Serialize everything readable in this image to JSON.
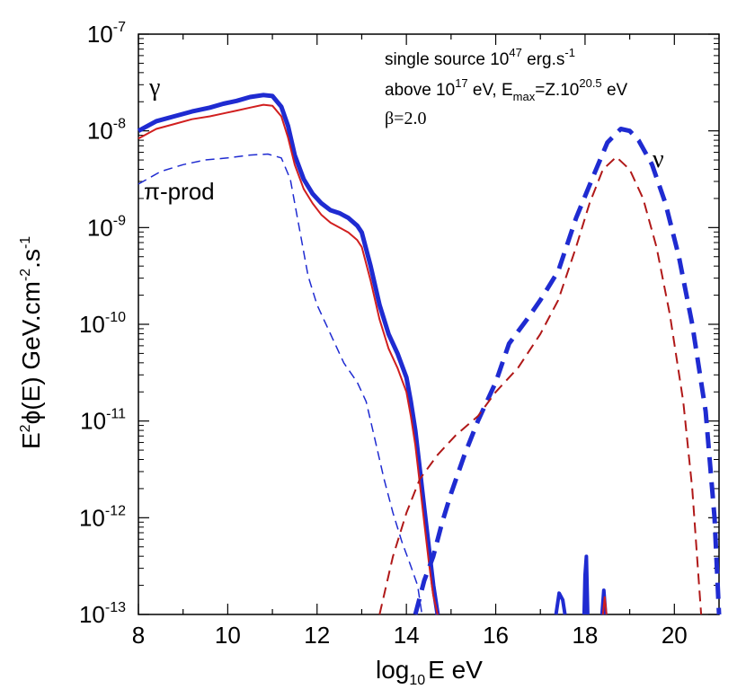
{
  "chart_data": {
    "type": "line",
    "ylabel": {
      "main": "E",
      "exp": "2",
      "rest": "ϕ(E) GeV.cm",
      "exp2": "-2",
      "rest2": ".s",
      "exp3": "-1"
    },
    "xlabel": {
      "main": "log",
      "sub": "10",
      "rest": "E eV"
    },
    "xlim": [
      8,
      21
    ],
    "ylim_log10": [
      -13,
      -7
    ],
    "y_scale": "log",
    "x_ticks": [
      8,
      10,
      12,
      14,
      16,
      18,
      20
    ],
    "x_tick_labels": [
      "8",
      "10",
      "12",
      "14",
      "16",
      "18",
      "20"
    ],
    "y_ticks_exp": [
      -7,
      -8,
      -9,
      -10,
      -11,
      -12,
      -13
    ],
    "y_tick_labels": [
      {
        "base": "10",
        "exp": "-7"
      },
      {
        "base": "10",
        "exp": "-8"
      },
      {
        "base": "10",
        "exp": "-9"
      },
      {
        "base": "10",
        "exp": "-10"
      },
      {
        "base": "10",
        "exp": "-11"
      },
      {
        "base": "10",
        "exp": "-12"
      },
      {
        "base": "10",
        "exp": "-13"
      }
    ],
    "annotations": {
      "line1": {
        "text": "single source 10",
        "exp": "47",
        "rest": " erg.s",
        "exp2": "-1"
      },
      "line2": {
        "text": "above 10",
        "exp": "17",
        "rest": " eV, E",
        "sub": "max",
        "rest2": "=Z.10",
        "exp2": "20.5",
        "rest3": " eV"
      },
      "line3": "β=2.0"
    },
    "curve_labels": {
      "gamma": "γ",
      "pi_prod": "π-prod",
      "nu": "ν"
    },
    "series": [
      {
        "name": "photons (blue, thick solid)",
        "color": "#1f2bd1",
        "dash": "none",
        "width": 5,
        "points": [
          [
            8.0,
            -8.0
          ],
          [
            8.4,
            -7.9
          ],
          [
            8.8,
            -7.85
          ],
          [
            9.2,
            -7.8
          ],
          [
            9.6,
            -7.76
          ],
          [
            9.9,
            -7.72
          ],
          [
            10.2,
            -7.69
          ],
          [
            10.5,
            -7.65
          ],
          [
            10.8,
            -7.63
          ],
          [
            11.0,
            -7.64
          ],
          [
            11.2,
            -7.75
          ],
          [
            11.35,
            -7.95
          ],
          [
            11.5,
            -8.25
          ],
          [
            11.7,
            -8.5
          ],
          [
            11.9,
            -8.65
          ],
          [
            12.1,
            -8.75
          ],
          [
            12.3,
            -8.82
          ],
          [
            12.5,
            -8.85
          ],
          [
            12.7,
            -8.9
          ],
          [
            12.9,
            -8.98
          ],
          [
            13.0,
            -9.05
          ],
          [
            13.2,
            -9.4
          ],
          [
            13.4,
            -9.8
          ],
          [
            13.6,
            -10.1
          ],
          [
            13.8,
            -10.3
          ],
          [
            14.0,
            -10.55
          ],
          [
            14.1,
            -10.8
          ],
          [
            14.2,
            -11.1
          ],
          [
            14.3,
            -11.5
          ],
          [
            14.4,
            -11.9
          ],
          [
            14.5,
            -12.3
          ],
          [
            14.6,
            -12.7
          ],
          [
            14.7,
            -13.0
          ]
        ]
      },
      {
        "name": "photons (red, thin solid)",
        "color": "#d11f1f",
        "dash": "none",
        "width": 2,
        "points": [
          [
            8.0,
            -8.08
          ],
          [
            8.4,
            -7.98
          ],
          [
            8.8,
            -7.93
          ],
          [
            9.2,
            -7.88
          ],
          [
            9.6,
            -7.85
          ],
          [
            9.9,
            -7.82
          ],
          [
            10.2,
            -7.79
          ],
          [
            10.5,
            -7.76
          ],
          [
            10.8,
            -7.73
          ],
          [
            11.0,
            -7.74
          ],
          [
            11.2,
            -7.85
          ],
          [
            11.35,
            -8.07
          ],
          [
            11.5,
            -8.35
          ],
          [
            11.7,
            -8.6
          ],
          [
            11.9,
            -8.75
          ],
          [
            12.1,
            -8.87
          ],
          [
            12.3,
            -8.95
          ],
          [
            12.5,
            -9.0
          ],
          [
            12.7,
            -9.05
          ],
          [
            12.9,
            -9.13
          ],
          [
            13.0,
            -9.2
          ],
          [
            13.2,
            -9.55
          ],
          [
            13.4,
            -9.95
          ],
          [
            13.6,
            -10.25
          ],
          [
            13.8,
            -10.45
          ],
          [
            14.0,
            -10.7
          ],
          [
            14.1,
            -10.95
          ],
          [
            14.2,
            -11.25
          ],
          [
            14.3,
            -11.65
          ],
          [
            14.4,
            -12.05
          ],
          [
            14.5,
            -12.45
          ],
          [
            14.6,
            -12.8
          ],
          [
            14.7,
            -13.0
          ]
        ]
      },
      {
        "name": "pi-prod (blue, thin dashed)",
        "color": "#1f2bd1",
        "dash": "10,6",
        "width": 1.5,
        "points": [
          [
            8.0,
            -8.55
          ],
          [
            8.5,
            -8.42
          ],
          [
            9.0,
            -8.35
          ],
          [
            9.5,
            -8.3
          ],
          [
            10.0,
            -8.28
          ],
          [
            10.5,
            -8.25
          ],
          [
            10.9,
            -8.24
          ],
          [
            11.2,
            -8.28
          ],
          [
            11.4,
            -8.5
          ],
          [
            11.6,
            -9.0
          ],
          [
            11.8,
            -9.5
          ],
          [
            12.0,
            -9.8
          ],
          [
            12.3,
            -10.1
          ],
          [
            12.6,
            -10.4
          ],
          [
            12.9,
            -10.6
          ],
          [
            13.1,
            -10.8
          ],
          [
            13.3,
            -11.2
          ],
          [
            13.5,
            -11.6
          ],
          [
            13.7,
            -11.95
          ],
          [
            13.9,
            -12.25
          ],
          [
            14.1,
            -12.5
          ],
          [
            14.25,
            -12.7
          ],
          [
            14.35,
            -13.0
          ]
        ]
      },
      {
        "name": "neutrinos (blue, thick dashed)",
        "color": "#1f2bd1",
        "dash": "18,10",
        "width": 5,
        "points": [
          [
            14.2,
            -13.0
          ],
          [
            14.4,
            -12.65
          ],
          [
            14.6,
            -12.4
          ],
          [
            14.8,
            -12.05
          ],
          [
            15.0,
            -11.75
          ],
          [
            15.3,
            -11.35
          ],
          [
            15.6,
            -11.0
          ],
          [
            16.0,
            -10.6
          ],
          [
            16.3,
            -10.2
          ],
          [
            16.7,
            -9.95
          ],
          [
            17.0,
            -9.75
          ],
          [
            17.4,
            -9.45
          ],
          [
            17.8,
            -8.9
          ],
          [
            18.2,
            -8.45
          ],
          [
            18.5,
            -8.12
          ],
          [
            18.8,
            -7.98
          ],
          [
            19.0,
            -8.0
          ],
          [
            19.2,
            -8.1
          ],
          [
            19.5,
            -8.35
          ],
          [
            19.8,
            -8.75
          ],
          [
            20.1,
            -9.3
          ],
          [
            20.4,
            -10.0
          ],
          [
            20.7,
            -10.9
          ],
          [
            20.9,
            -12.0
          ],
          [
            21.0,
            -13.0
          ]
        ]
      },
      {
        "name": "neutrinos (red, thin dashed)",
        "color": "#b01818",
        "dash": "12,7",
        "width": 2,
        "points": [
          [
            13.4,
            -13.0
          ],
          [
            13.7,
            -12.4
          ],
          [
            14.0,
            -11.95
          ],
          [
            14.3,
            -11.6
          ],
          [
            14.7,
            -11.35
          ],
          [
            15.1,
            -11.15
          ],
          [
            15.6,
            -10.95
          ],
          [
            16.0,
            -10.7
          ],
          [
            16.5,
            -10.45
          ],
          [
            17.0,
            -10.1
          ],
          [
            17.4,
            -9.75
          ],
          [
            17.8,
            -9.2
          ],
          [
            18.1,
            -8.75
          ],
          [
            18.4,
            -8.4
          ],
          [
            18.7,
            -8.27
          ],
          [
            19.0,
            -8.4
          ],
          [
            19.3,
            -8.7
          ],
          [
            19.6,
            -9.2
          ],
          [
            19.9,
            -9.9
          ],
          [
            20.2,
            -10.8
          ],
          [
            20.4,
            -11.7
          ],
          [
            20.6,
            -13.0
          ]
        ]
      },
      {
        "name": "high-energy spikes (blue)",
        "color": "#1f2bd1",
        "dash": "none",
        "width": 4,
        "points": [
          [
            17.35,
            -13.0
          ],
          [
            17.42,
            -12.78
          ],
          [
            17.5,
            -12.85
          ],
          [
            17.55,
            -13.0
          ]
        ]
      },
      {
        "name": "spike 18",
        "color": "#1f2bd1",
        "dash": "none",
        "width": 4,
        "points": [
          [
            17.98,
            -13.0
          ],
          [
            18.0,
            -12.6
          ],
          [
            18.03,
            -12.4
          ],
          [
            18.06,
            -13.0
          ]
        ]
      },
      {
        "name": "spike 18.4",
        "color": "#1f2bd1",
        "dash": "none",
        "width": 4,
        "points": [
          [
            18.38,
            -13.0
          ],
          [
            18.42,
            -12.75
          ],
          [
            18.46,
            -13.0
          ]
        ]
      },
      {
        "name": "spike 18.45 red",
        "color": "#d11f1f",
        "dash": "none",
        "width": 2,
        "points": [
          [
            18.4,
            -13.0
          ],
          [
            18.44,
            -12.82
          ],
          [
            18.48,
            -13.0
          ]
        ]
      }
    ]
  }
}
